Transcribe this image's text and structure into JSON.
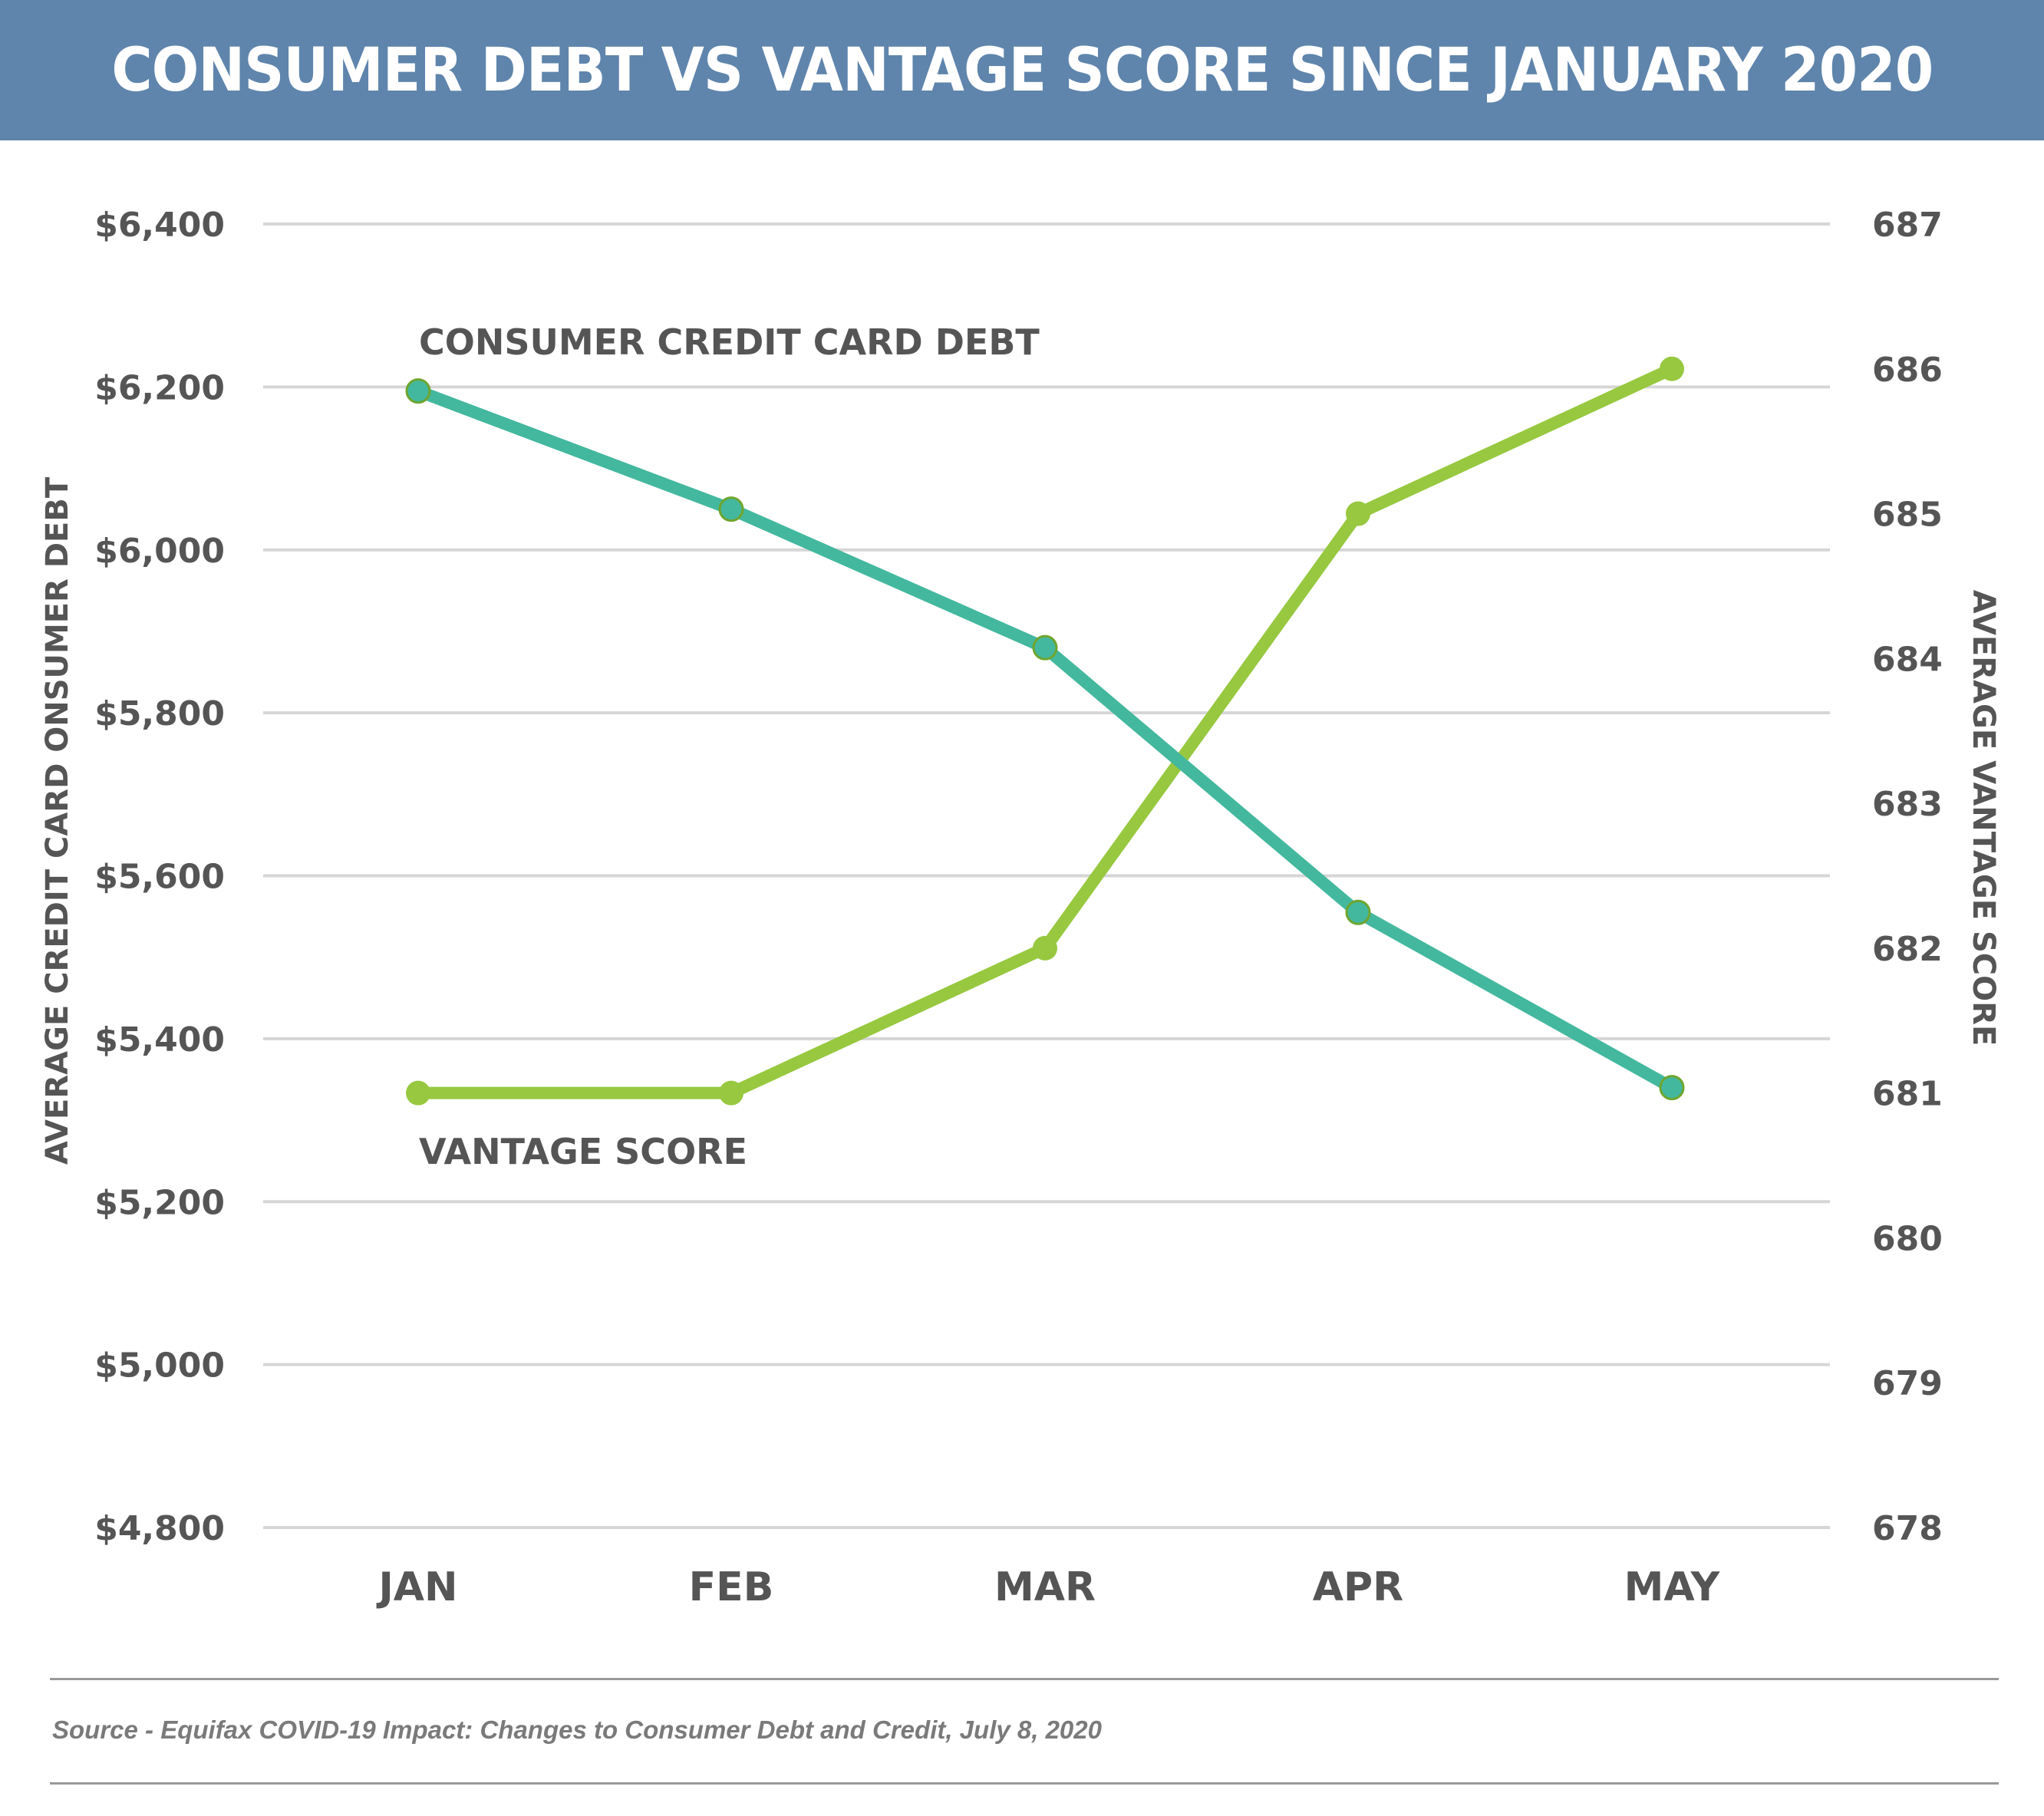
{
  "header": {
    "title": "CONSUMER DEBT VS VANTAGE SCORE SINCE JANUARY 2020",
    "background": "#5F85AC"
  },
  "axes": {
    "left_title": "AVERAGE CREDIT CARD ONSUMER DEBT",
    "right_title": "AVERAGE VANTAGE SCORE",
    "left_ticks": [
      "$6,400",
      "$6,200",
      "$6,000",
      "$5,800",
      "$5,600",
      "$5,400",
      "$5,200",
      "$5,000",
      "$4,800"
    ],
    "right_ticks": [
      "687",
      "686",
      "685",
      "684",
      "683",
      "682",
      "681",
      "680",
      "679",
      "678"
    ],
    "months": [
      "JAN",
      "FEB",
      "MAR",
      "APR",
      "MAY"
    ]
  },
  "labels": {
    "debt": "CONSUMER CREDIT CARD DEBT",
    "vantage": "VANTAGE SCORE"
  },
  "footer": {
    "source": "Source - Equifax COVID-19 Impact: Changes to Consumer Debt and Credit, July 8, 2020"
  },
  "colors": {
    "debt_line": "#43B89E",
    "vantage_line": "#97C83F",
    "marker_outline": "#6FA52E",
    "gridline": "#D6D6D6",
    "text": "#555555"
  },
  "chart_data": {
    "type": "line",
    "title": "CONSUMER DEBT VS VANTAGE SCORE SINCE JANUARY 2020",
    "categories": [
      "JAN",
      "FEB",
      "MAR",
      "APR",
      "MAY"
    ],
    "series": [
      {
        "name": "CONSUMER CREDIT CARD DEBT",
        "axis": "left",
        "values": [
          6195,
          6050,
          5880,
          5555,
          5340
        ]
      },
      {
        "name": "VANTAGE SCORE",
        "axis": "right",
        "values": [
          681,
          681,
          682,
          685,
          686
        ]
      }
    ],
    "xlabel": "",
    "ylabel_left": "AVERAGE CREDIT CARD ONSUMER DEBT",
    "ylabel_right": "AVERAGE VANTAGE SCORE",
    "ylim_left": [
      4800,
      6400
    ],
    "ylim_right": [
      678,
      687
    ],
    "grid": true,
    "legend": "inline labels"
  }
}
